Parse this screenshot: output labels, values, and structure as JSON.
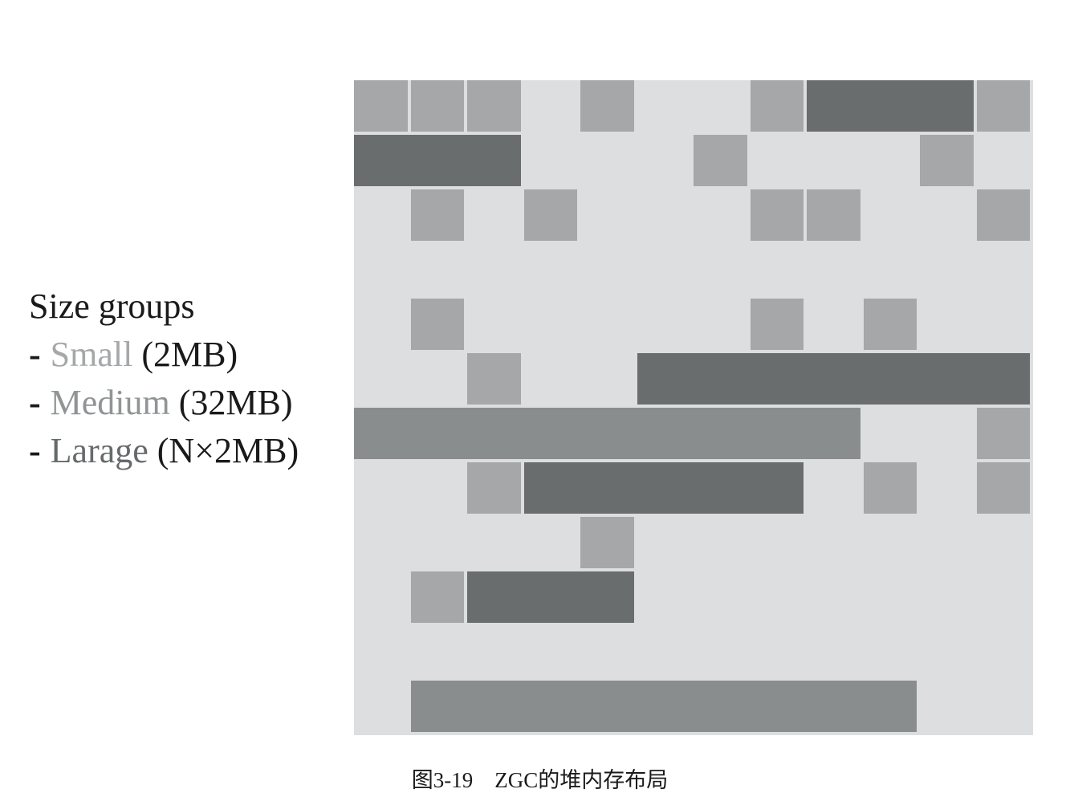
{
  "legend": {
    "title": "Size groups",
    "small": {
      "dash": "-",
      "name": "Small",
      "size": "(2MB)"
    },
    "medium": {
      "dash": "-",
      "name": "Medium",
      "size": "(32MB)"
    },
    "large": {
      "dash": "-",
      "name": "Larage",
      "size": "(N×2MB)"
    }
  },
  "colors": {
    "background": "#dcdedf",
    "small": "#a5a7a8",
    "medium": "#6a6d6e",
    "large": "#8a8d8e"
  },
  "heap_grid": {
    "columns": 12,
    "rows": 12,
    "blocks": [
      {
        "type": "small",
        "row": 0,
        "col": 0,
        "span": 1
      },
      {
        "type": "small",
        "row": 0,
        "col": 1,
        "span": 1
      },
      {
        "type": "small",
        "row": 0,
        "col": 2,
        "span": 1
      },
      {
        "type": "small",
        "row": 0,
        "col": 4,
        "span": 1
      },
      {
        "type": "small",
        "row": 0,
        "col": 7,
        "span": 1
      },
      {
        "type": "medium",
        "row": 0,
        "col": 8,
        "span": 3
      },
      {
        "type": "small",
        "row": 0,
        "col": 11,
        "span": 1
      },
      {
        "type": "medium",
        "row": 1,
        "col": 0,
        "span": 3
      },
      {
        "type": "small",
        "row": 1,
        "col": 6,
        "span": 1
      },
      {
        "type": "small",
        "row": 1,
        "col": 10,
        "span": 1
      },
      {
        "type": "small",
        "row": 2,
        "col": 1,
        "span": 1
      },
      {
        "type": "small",
        "row": 2,
        "col": 3,
        "span": 1
      },
      {
        "type": "small",
        "row": 2,
        "col": 7,
        "span": 1
      },
      {
        "type": "small",
        "row": 2,
        "col": 8,
        "span": 1
      },
      {
        "type": "small",
        "row": 2,
        "col": 11,
        "span": 1
      },
      {
        "type": "small",
        "row": 4,
        "col": 1,
        "span": 1
      },
      {
        "type": "small",
        "row": 4,
        "col": 7,
        "span": 1
      },
      {
        "type": "small",
        "row": 4,
        "col": 9,
        "span": 1
      },
      {
        "type": "small",
        "row": 5,
        "col": 2,
        "span": 1
      },
      {
        "type": "medium",
        "row": 5,
        "col": 5,
        "span": 7
      },
      {
        "type": "large",
        "row": 6,
        "col": 0,
        "span": 9
      },
      {
        "type": "small",
        "row": 6,
        "col": 11,
        "span": 1
      },
      {
        "type": "small",
        "row": 7,
        "col": 2,
        "span": 1
      },
      {
        "type": "medium",
        "row": 7,
        "col": 3,
        "span": 5
      },
      {
        "type": "small",
        "row": 7,
        "col": 9,
        "span": 1
      },
      {
        "type": "small",
        "row": 7,
        "col": 11,
        "span": 1
      },
      {
        "type": "small",
        "row": 8,
        "col": 4,
        "span": 1
      },
      {
        "type": "small",
        "row": 9,
        "col": 1,
        "span": 1
      },
      {
        "type": "medium",
        "row": 9,
        "col": 2,
        "span": 3
      },
      {
        "type": "large",
        "row": 11,
        "col": 1,
        "span": 9
      }
    ]
  },
  "caption": "图3-19　ZGC的堆内存布局"
}
